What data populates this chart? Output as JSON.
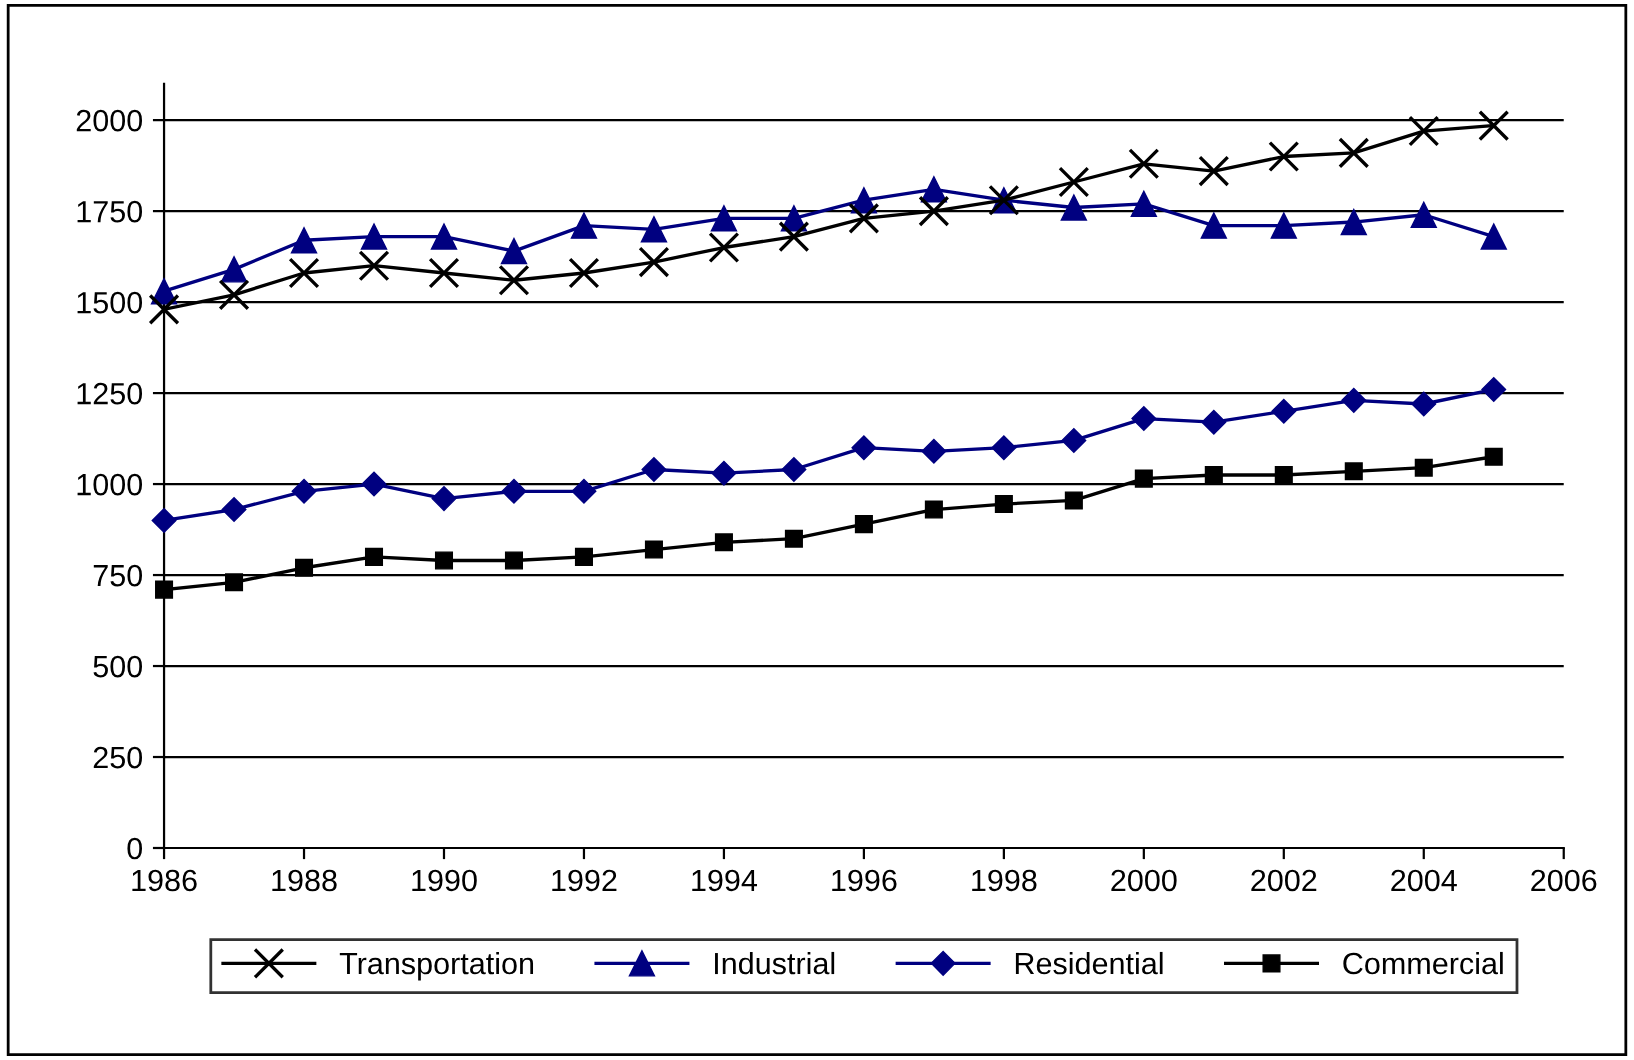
{
  "chart_data": {
    "type": "line",
    "x": [
      1986,
      1987,
      1988,
      1989,
      1990,
      1991,
      1992,
      1993,
      1994,
      1995,
      1996,
      1997,
      1998,
      1999,
      2000,
      2001,
      2002,
      2003,
      2004,
      2005
    ],
    "series": [
      {
        "name": "Transportation",
        "color": "#000000",
        "marker": "cross",
        "values": [
          1480,
          1520,
          1580,
          1600,
          1580,
          1560,
          1580,
          1610,
          1650,
          1680,
          1730,
          1750,
          1780,
          1830,
          1880,
          1860,
          1900,
          1910,
          1970,
          1985
        ]
      },
      {
        "name": "Industrial",
        "color": "#000080",
        "marker": "triangle",
        "values": [
          1530,
          1590,
          1670,
          1680,
          1680,
          1640,
          1710,
          1700,
          1730,
          1730,
          1780,
          1810,
          1780,
          1760,
          1770,
          1710,
          1710,
          1720,
          1740,
          1680
        ]
      },
      {
        "name": "Residential",
        "color": "#000080",
        "marker": "diamond",
        "values": [
          900,
          930,
          980,
          1000,
          960,
          980,
          980,
          1040,
          1030,
          1040,
          1100,
          1090,
          1100,
          1120,
          1180,
          1170,
          1200,
          1230,
          1220,
          1260
        ]
      },
      {
        "name": "Commercial",
        "color": "#000000",
        "marker": "square",
        "values": [
          710,
          730,
          770,
          800,
          790,
          790,
          800,
          820,
          840,
          850,
          890,
          930,
          945,
          955,
          1015,
          1025,
          1025,
          1035,
          1045,
          1075
        ]
      }
    ],
    "xlim": [
      1986,
      2006
    ],
    "xticks": [
      1986,
      1988,
      1990,
      1992,
      1994,
      1996,
      1998,
      2000,
      2002,
      2004,
      2006
    ],
    "ylim": [
      0,
      2100
    ],
    "yticks": [
      0,
      250,
      500,
      750,
      1000,
      1250,
      1500,
      1750,
      2000
    ],
    "grid": "y",
    "legend": "bottom",
    "line_style": "solid"
  }
}
